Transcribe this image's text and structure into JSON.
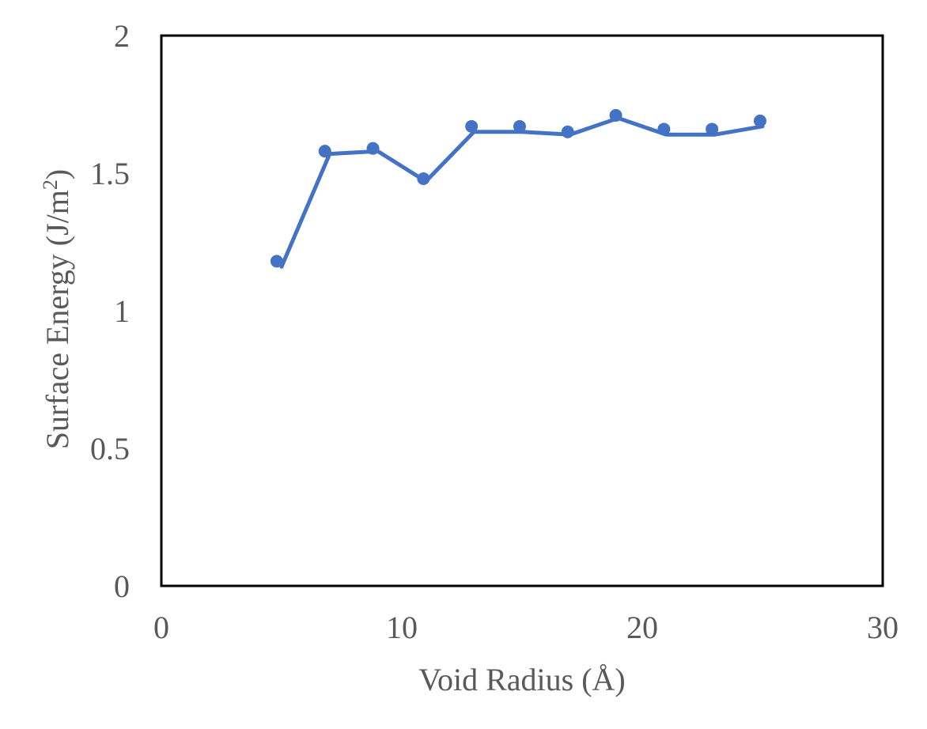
{
  "chart_data": {
    "type": "line",
    "title": "",
    "xlabel": "Void Radius (Å)",
    "ylabel": {
      "prefix": "Surface Energy (J/m",
      "superscript": "2",
      "suffix": ")"
    },
    "xlim": [
      0,
      30
    ],
    "ylim": [
      0,
      2
    ],
    "x_ticks": [
      0,
      10,
      20,
      30
    ],
    "y_ticks": [
      0,
      0.5,
      1,
      1.5,
      2
    ],
    "x_tick_labels": [
      "0",
      "10",
      "20",
      "30"
    ],
    "y_tick_labels": [
      "0",
      "0.5",
      "1",
      "1.5",
      "2"
    ],
    "grid": false,
    "legend": "none",
    "series": [
      {
        "markers": [
          {
            "x": 4.8,
            "y": 1.18
          },
          {
            "x": 6.8,
            "y": 1.58
          },
          {
            "x": 8.8,
            "y": 1.59
          },
          {
            "x": 10.9,
            "y": 1.48
          },
          {
            "x": 12.9,
            "y": 1.67
          },
          {
            "x": 14.9,
            "y": 1.67
          },
          {
            "x": 16.9,
            "y": 1.65
          },
          {
            "x": 18.9,
            "y": 1.71
          },
          {
            "x": 20.9,
            "y": 1.66
          },
          {
            "x": 22.9,
            "y": 1.66
          },
          {
            "x": 24.9,
            "y": 1.69
          }
        ],
        "line": [
          {
            "x": 5.0,
            "y": 1.16
          },
          {
            "x": 7.0,
            "y": 1.57
          },
          {
            "x": 9.0,
            "y": 1.58
          },
          {
            "x": 11.0,
            "y": 1.47
          },
          {
            "x": 13.0,
            "y": 1.65
          },
          {
            "x": 15.0,
            "y": 1.65
          },
          {
            "x": 17.0,
            "y": 1.64
          },
          {
            "x": 19.0,
            "y": 1.7
          },
          {
            "x": 21.0,
            "y": 1.64
          },
          {
            "x": 23.0,
            "y": 1.64
          },
          {
            "x": 25.0,
            "y": 1.67
          }
        ]
      }
    ],
    "colors": {
      "series": "#4472C4",
      "axis": "#000000",
      "text": "#595959"
    }
  }
}
